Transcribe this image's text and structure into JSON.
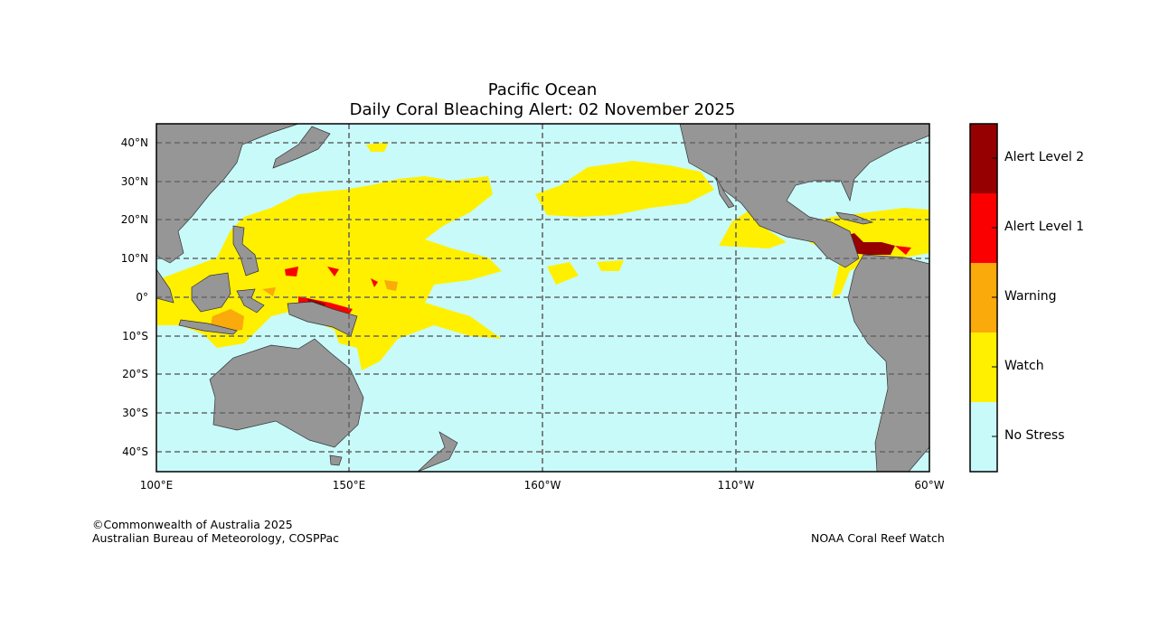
{
  "title": "Pacific Ocean",
  "subtitle": "Daily Coral Bleaching Alert: 02 November 2025",
  "lat_labels": [
    "40°N",
    "30°N",
    "20°N",
    "10°N",
    "0°",
    "10°S",
    "20°S",
    "30°S",
    "40°S"
  ],
  "lon_labels": [
    "100°E",
    "150°E",
    "160°W",
    "110°W",
    "60°W"
  ],
  "legend": [
    {
      "label": "Alert Level 2",
      "color": "#960000"
    },
    {
      "label": "Alert Level 1",
      "color": "#fa0000"
    },
    {
      "label": "Warning",
      "color": "#faaa0a"
    },
    {
      "label": "Watch",
      "color": "#fff000"
    },
    {
      "label": "No Stress",
      "color": "#c8fafa"
    }
  ],
  "colors": {
    "land": "#969696",
    "ocean": "#c8fafa",
    "grid": "#666666"
  },
  "footer": {
    "left_line1": "©Commonwealth of Australia 2025",
    "left_line2": "Australian Bureau of Meteorology, COSPPac",
    "right": "NOAA Coral Reef Watch"
  }
}
